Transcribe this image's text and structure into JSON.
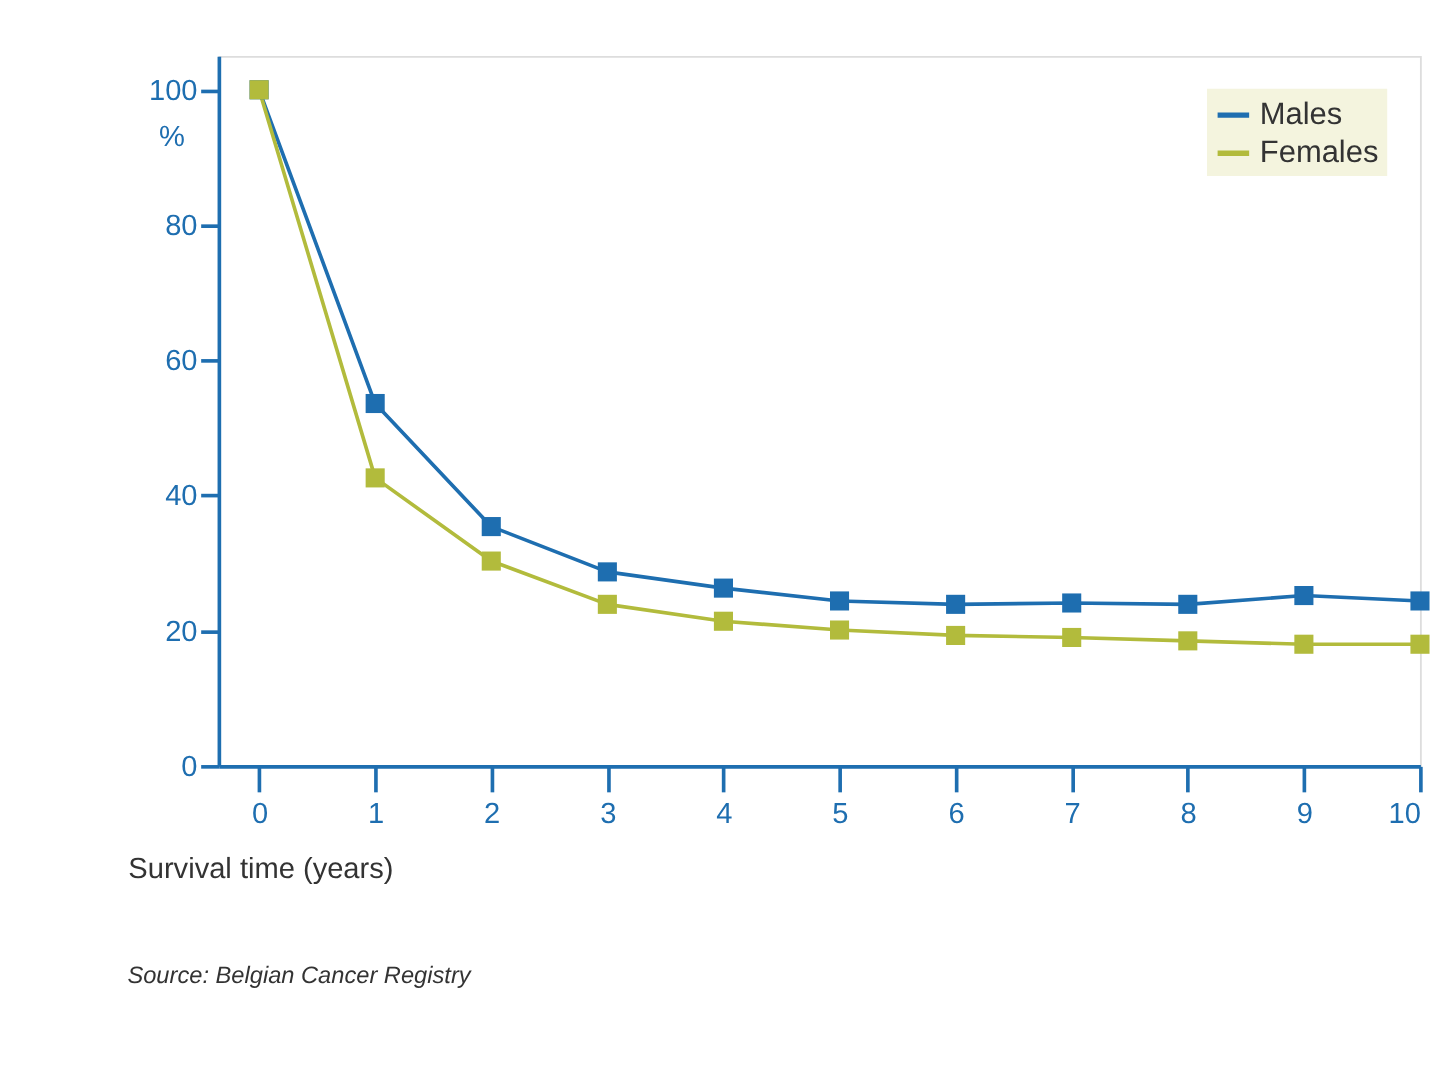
{
  "chart_data": {
    "type": "line",
    "xlabel": "Survival time (years)",
    "ylabel": "%",
    "x": [
      0,
      1,
      2,
      3,
      4,
      5,
      6,
      7,
      8,
      9,
      10
    ],
    "series": [
      {
        "name": "Males",
        "color": "#1e6eb0",
        "values": [
          100,
          53.6,
          35.4,
          28.7,
          26.3,
          24.4,
          23.9,
          24.1,
          23.9,
          25.2,
          24.4
        ]
      },
      {
        "name": "Females",
        "color": "#b2bb3c",
        "values": [
          100,
          42.6,
          30.3,
          23.9,
          21.4,
          20.1,
          19.3,
          19.0,
          18.5,
          18.0,
          18.0
        ]
      }
    ],
    "xlim": [
      -0.35,
      10
    ],
    "xticks": [
      0,
      1,
      2,
      3,
      4,
      5,
      6,
      7,
      8,
      9,
      10
    ],
    "ylim": [
      0,
      105
    ],
    "yticks": [
      0,
      20,
      40,
      60,
      80,
      100
    ],
    "grid": false,
    "legend": "top right",
    "marker": "square",
    "line_style": "solid",
    "annotations": [
      "Source: Belgian Cancer Registry"
    ]
  }
}
